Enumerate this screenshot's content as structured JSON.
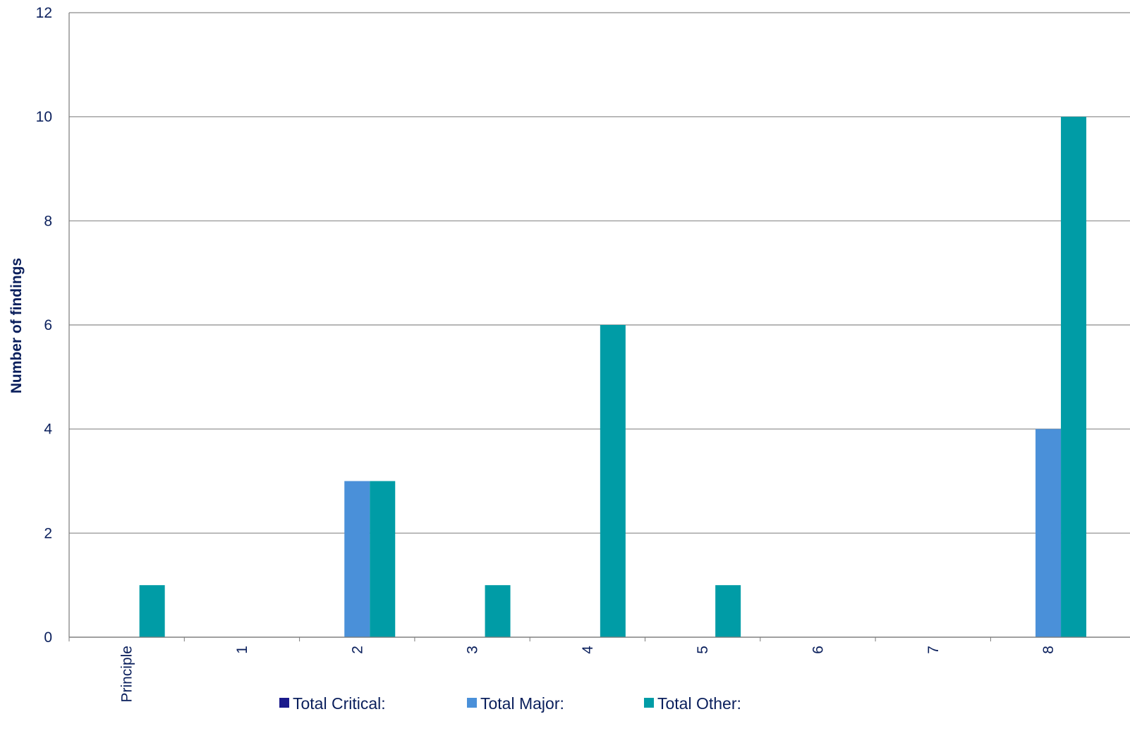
{
  "chart_data": {
    "type": "bar",
    "title": "",
    "xlabel": "",
    "ylabel": "Number of findings",
    "ylim": [
      0,
      12
    ],
    "yticks": [
      0,
      2,
      4,
      6,
      8,
      10,
      12
    ],
    "grid": true,
    "legend_position": "bottom",
    "categories": [
      "Principle",
      "1",
      "2",
      "3",
      "4",
      "5",
      "6",
      "7",
      "8"
    ],
    "series": [
      {
        "name": "Total Critical:",
        "color": "#1a1a8c",
        "values": [
          0,
          0,
          0,
          0,
          0,
          0,
          0,
          0,
          0
        ]
      },
      {
        "name": "Total Major:",
        "color": "#4a90d9",
        "values": [
          0,
          0,
          3,
          0,
          0,
          0,
          0,
          0,
          4
        ]
      },
      {
        "name": "Total Other:",
        "color": "#009ca6",
        "values": [
          1,
          0,
          3,
          1,
          6,
          1,
          0,
          0,
          10
        ]
      }
    ]
  }
}
